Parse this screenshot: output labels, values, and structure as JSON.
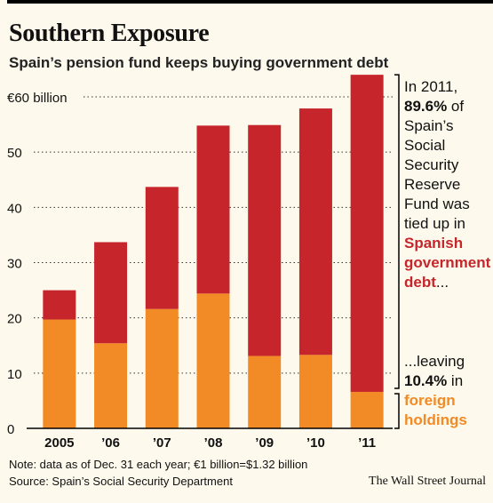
{
  "header": {
    "title": "Southern Exposure",
    "subtitle": "Spain’s pension fund keeps buying government debt"
  },
  "annotations": {
    "top": {
      "line1": "In 2011,",
      "bold": "89.6%",
      "line2_rest": " of",
      "lines": [
        "Spain’s",
        "Social",
        "Security",
        "Reserve",
        "Fund was",
        "tied up in"
      ],
      "red_lines": [
        "Spanish",
        "government",
        "debt"
      ],
      "red_suffix": "..."
    },
    "bottom": {
      "line1": "...leaving",
      "bold": "10.4%",
      "line2_rest": " in",
      "orange_lines": [
        "foreign",
        "holdings"
      ]
    }
  },
  "footer": {
    "note": "Note: data as of Dec. 31 each year; €1 billion=$1.32 billion",
    "source": "Source: Spain’s Social Security Department",
    "credit": "The Wall Street Journal"
  },
  "colors": {
    "government": "#c6262b",
    "foreign": "#f28a25",
    "background": "#fdf9ec"
  },
  "chart_data": {
    "type": "bar",
    "stacked": true,
    "categories": [
      "2005",
      "’06",
      "’07",
      "’08",
      "’09",
      "’10",
      "’11"
    ],
    "series": [
      {
        "values": [
          19.7,
          15.4,
          21.6,
          24.4,
          13.1,
          13.3,
          6.6
        ]
      },
      {
        "values": [
          5.3,
          18.3,
          22.1,
          30.4,
          41.8,
          44.6,
          57.4
        ]
      }
    ],
    "ylim": [
      0,
      60
    ],
    "yticks": [
      0,
      10,
      20,
      30,
      40,
      50,
      60
    ],
    "ytick_labels": [
      "0",
      "10",
      "20",
      "30",
      "40",
      "50",
      "€60 billion"
    ],
    "grid": true
  }
}
